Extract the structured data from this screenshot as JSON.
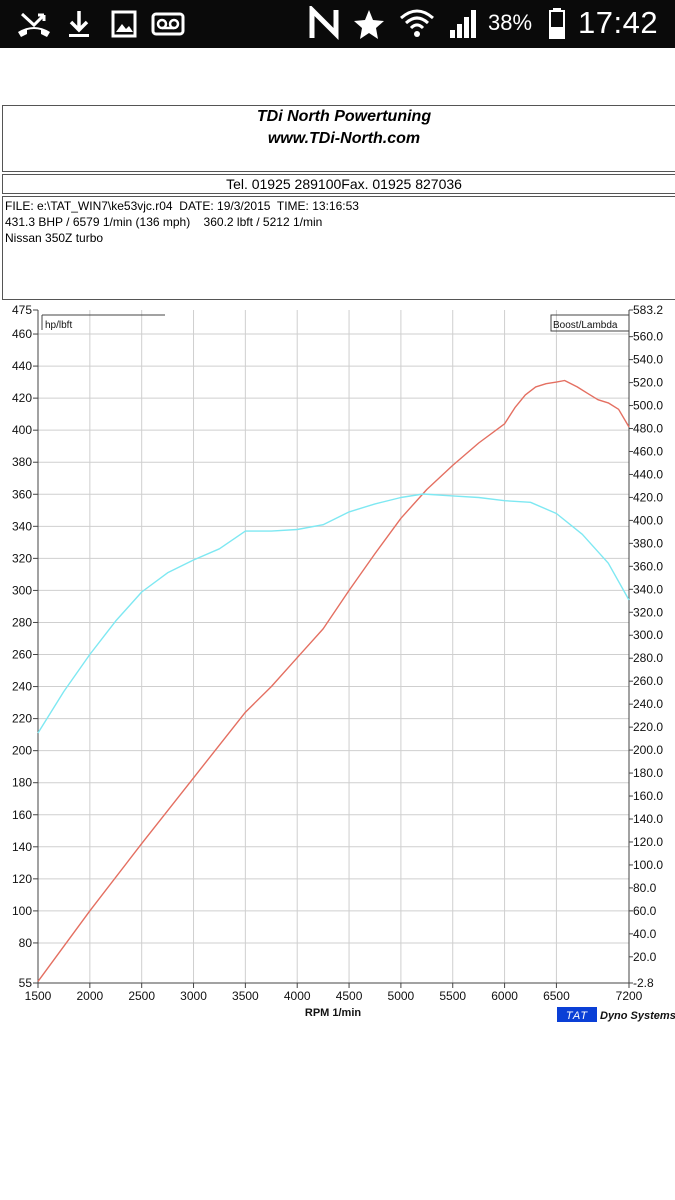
{
  "status_bar": {
    "battery_percent": "38%",
    "time": "17:42",
    "icons": [
      "missed-call-icon",
      "download-icon",
      "image-icon",
      "voicemail-icon",
      "nfc-icon",
      "star-icon",
      "wifi-icon",
      "signal-icon",
      "battery-icon"
    ]
  },
  "header": {
    "company": "TDi North Powertuning",
    "website": "www.TDi-North.com",
    "contact": "Tel. 01925 289100Fax. 01925 827036",
    "file_line": "FILE: e:\\TAT_WIN7\\ke53vjc.r04  DATE: 19/3/2015  TIME: 13:16:53",
    "result_line": "431.3 BHP / 6579 1/min (136 mph)    360.2 lbft / 5212 1/min",
    "vehicle": "Nissan 350Z turbo"
  },
  "chart_data": {
    "type": "line",
    "xlabel": "RPM  1/min",
    "left_axis_label": "hp/lbft",
    "right_axis_label": "Boost/Lambda",
    "xlim": [
      1500,
      7200
    ],
    "ylim_left": [
      55,
      475
    ],
    "ylim_right": [
      -2.8,
      583.2
    ],
    "x_ticks": [
      "1500",
      "2000",
      "2500",
      "3000",
      "3500",
      "4000",
      "4500",
      "5000",
      "5500",
      "6000",
      "6500",
      "7200"
    ],
    "y_ticks_left": [
      "475",
      "460",
      "440",
      "420",
      "400",
      "380",
      "360",
      "340",
      "320",
      "300",
      "280",
      "260",
      "240",
      "220",
      "200",
      "180",
      "160",
      "140",
      "120",
      "100",
      "80",
      "55"
    ],
    "y_ticks_right": [
      "583.2",
      "560.0",
      "540.0",
      "520.0",
      "500.0",
      "480.0",
      "460.0",
      "440.0",
      "420.0",
      "400.0",
      "380.0",
      "360.0",
      "340.0",
      "320.0",
      "300.0",
      "280.0",
      "260.0",
      "240.0",
      "220.0",
      "200.0",
      "180.0",
      "160.0",
      "140.0",
      "120.0",
      "100.0",
      "80.0",
      "60.0",
      "40.0",
      "20.0",
      "-2.8"
    ],
    "grid": true,
    "logo": "TAT",
    "logo_text": "Dyno Systems",
    "series": [
      {
        "color": "#e46f61",
        "x": [
          1500,
          2000,
          2500,
          3000,
          3500,
          3750,
          4000,
          4250,
          4500,
          4750,
          5000,
          5250,
          5500,
          5750,
          6000,
          6100,
          6200,
          6300,
          6400,
          6500,
          6579,
          6700,
          6800,
          6900,
          7000,
          7100,
          7200
        ],
        "y": [
          56,
          100,
          142,
          183,
          224,
          240,
          258,
          276,
          300,
          323,
          345,
          363,
          378,
          392,
          404,
          414,
          422,
          427,
          429,
          430,
          431,
          427,
          423,
          419,
          417,
          413,
          402
        ]
      },
      {
        "color": "#7ee8f2",
        "x": [
          1500,
          1750,
          2000,
          2250,
          2500,
          2750,
          3000,
          3250,
          3500,
          3750,
          4000,
          4250,
          4500,
          4750,
          5000,
          5212,
          5500,
          5750,
          6000,
          6250,
          6500,
          6750,
          7000,
          7200
        ],
        "y": [
          211,
          237,
          260,
          281,
          299,
          311,
          319,
          326,
          337,
          337,
          338,
          341,
          349,
          354,
          358,
          360.2,
          359,
          358,
          356,
          355,
          348,
          335,
          317,
          294
        ]
      }
    ]
  }
}
